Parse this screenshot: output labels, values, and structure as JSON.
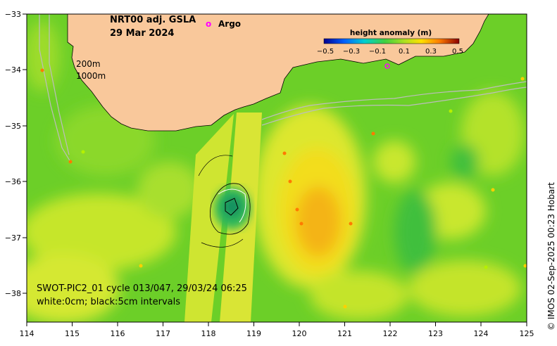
{
  "title": {
    "line1": "NRT00 adj. GSLA",
    "line2": "29 Mar 2024"
  },
  "argo_legend": {
    "symbol": "o",
    "label": "Argo"
  },
  "colorbar": {
    "title": "height anomaly (m)",
    "ticks": [
      "−0.5",
      "−0.3",
      "−0.1",
      "0.1",
      "0.3",
      "0.5"
    ]
  },
  "isobaths": {
    "shallow": "200m",
    "deep": "1000m"
  },
  "swot": {
    "line1": "SWOT-PIC2_01 cycle 013/047, 29/03/24 06:25",
    "line2": "white:0cm; black:5cm intervals"
  },
  "axes": {
    "x_ticks": [
      "114",
      "115",
      "116",
      "117",
      "118",
      "119",
      "120",
      "121",
      "122",
      "123",
      "124",
      "125"
    ],
    "y_ticks": [
      "−33",
      "−34",
      "−35",
      "−36",
      "−37",
      "−38"
    ]
  },
  "credit": "© IMOS 02-Sep-2025 00:23 Hobart",
  "colors": {
    "land": "#f9c89b",
    "argo": "#ff00ff",
    "sea_mid": "#7ed321",
    "sea_high": "#ffd200",
    "sea_low": "#00a050"
  }
}
